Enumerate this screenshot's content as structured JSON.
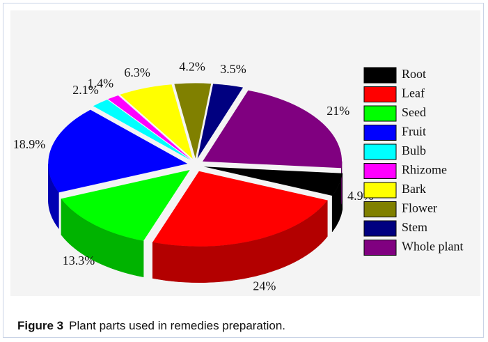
{
  "chart_data": {
    "type": "pie",
    "categories": [
      "Root",
      "Leaf",
      "Seed",
      "Fruit",
      "Bulb",
      "Rhizome",
      "Bark",
      "Flower",
      "Stem",
      "Whole plant"
    ],
    "values": [
      4.9,
      24,
      13.3,
      18.9,
      2.1,
      1.4,
      6.3,
      4.2,
      3.5,
      21
    ],
    "value_labels": [
      "4.9%",
      "24%",
      "13.3%",
      "18.9%",
      "2.1%",
      "1.4%",
      "6.3%",
      "4.2%",
      "3.5%",
      "21%"
    ],
    "colors": [
      "#000000",
      "#ff0000",
      "#00ff00",
      "#0000ff",
      "#00ffff",
      "#ff00ff",
      "#ffff00",
      "#808000",
      "#000080",
      "#800080"
    ],
    "legend": "right"
  },
  "caption": {
    "label": "Figure 3",
    "text": "Plant parts used in remedies preparation."
  }
}
